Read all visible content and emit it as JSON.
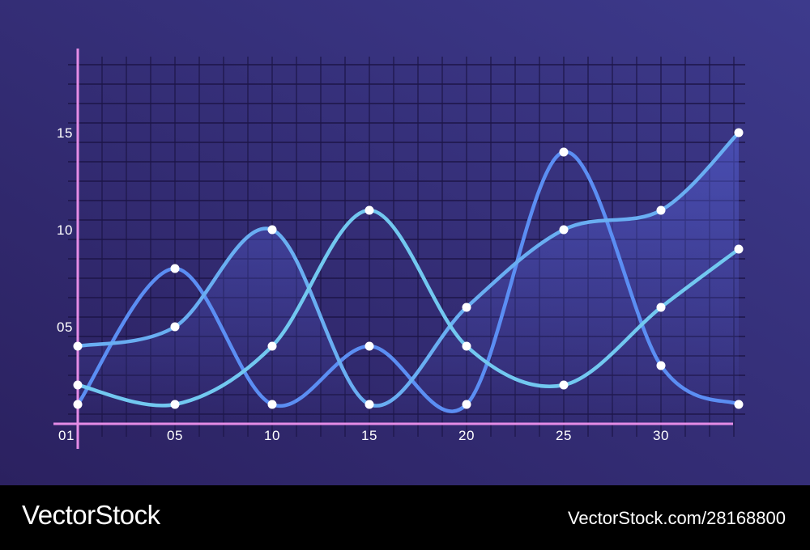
{
  "colors": {
    "bg_top_left": "#2b2160",
    "bg_bottom_right": "#3d3a8c",
    "grid": "#1d1648",
    "axis": "#e58ce6",
    "point": "#ffffff",
    "area_fill": "#5561d6"
  },
  "chart_data": {
    "type": "line",
    "title": "",
    "xlabel": "",
    "ylabel": "",
    "x_ticks": [
      "01",
      "05",
      "10",
      "15",
      "20",
      "25",
      "30"
    ],
    "y_ticks": [
      "05",
      "10",
      "15"
    ],
    "xlim": [
      0,
      34
    ],
    "ylim": [
      0,
      20
    ],
    "grid": true,
    "legend": "none",
    "x": [
      0,
      5,
      10,
      15,
      20,
      25,
      30,
      34
    ],
    "series": [
      {
        "color": "#5b8ef3",
        "values": [
          1,
          8,
          1,
          4,
          1,
          14,
          3,
          1
        ]
      },
      {
        "color": "#69aef2",
        "values": [
          4,
          5,
          10,
          1,
          6,
          10,
          11,
          15
        ],
        "fill": true
      },
      {
        "color": "#72c8f0",
        "values": [
          2,
          1,
          4,
          11,
          4,
          2,
          6,
          9
        ]
      }
    ]
  },
  "footer": {
    "brand": "VectorStock",
    "url": "VectorStock.com/28168800"
  }
}
